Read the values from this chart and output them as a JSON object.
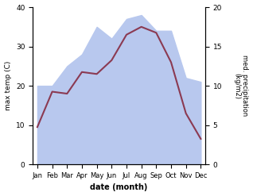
{
  "months": [
    "Jan",
    "Feb",
    "Mar",
    "Apr",
    "May",
    "Jun",
    "Jul",
    "Aug",
    "Sep",
    "Oct",
    "Nov",
    "Dec"
  ],
  "month_positions": [
    0,
    1,
    2,
    3,
    4,
    5,
    6,
    7,
    8,
    9,
    10,
    11
  ],
  "temp_data": [
    9.5,
    18.5,
    18.0,
    23.5,
    23.0,
    26.5,
    33.0,
    35.0,
    33.5,
    26.0,
    13.0,
    6.5
  ],
  "precip_data": [
    10.0,
    10.0,
    12.5,
    14.0,
    17.5,
    16.0,
    18.5,
    19.0,
    17.0,
    17.0,
    11.0,
    10.5
  ],
  "temp_color": "#8b3a52",
  "precip_color_fill": "#b8c8ee",
  "ylabel_left": "max temp (C)",
  "ylabel_right": "med. precipitation\n(kg/m2)",
  "xlabel": "date (month)",
  "ylim_left": [
    0,
    40
  ],
  "ylim_right": [
    0,
    20
  ],
  "yticks_left": [
    0,
    10,
    20,
    30,
    40
  ],
  "yticks_right": [
    0,
    5,
    10,
    15,
    20
  ],
  "background_color": "#ffffff",
  "line_width": 1.5
}
